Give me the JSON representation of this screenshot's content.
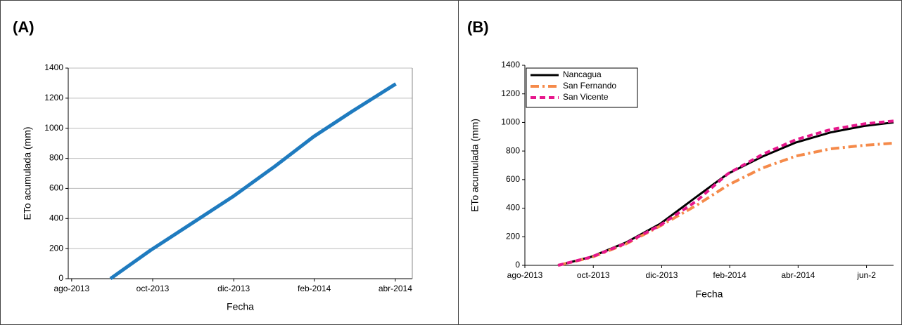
{
  "chart_data": [
    {
      "type": "line",
      "title": "(A)",
      "x_label": "Fecha",
      "y_label": "ETo acumulada (mm)",
      "x": [
        2013.663,
        2013.746,
        2013.827,
        2013.915,
        2014.001,
        2014.082,
        2014.16,
        2014.251
      ],
      "values": [
        0,
        190,
        360,
        545,
        745,
        945,
        1110,
        1295
      ],
      "color": "#1f7bbf",
      "grid": true,
      "xlim": [
        2013.576,
        2014.285
      ],
      "xticks": [
        {
          "value": 2013.583,
          "label": "ago-2013"
        },
        {
          "value": 2013.75,
          "label": "oct-2013"
        },
        {
          "value": 2013.917,
          "label": "dic-2013"
        },
        {
          "value": 2014.083,
          "label": "feb-2014"
        },
        {
          "value": 2014.25,
          "label": "abr-2014"
        }
      ],
      "ylim": [
        0,
        1400
      ],
      "yticks": [
        0,
        200,
        400,
        600,
        800,
        1000,
        1200,
        1400
      ]
    },
    {
      "type": "line",
      "title": "(B)",
      "x_label": "Fecha",
      "y_label": "ETo acumulada (mm)",
      "x": [
        2013.664,
        2013.745,
        2013.83,
        2013.913,
        2014.002,
        2014.078,
        2014.162,
        2014.245,
        2014.329,
        2014.411,
        2014.483
      ],
      "series": [
        {
          "name": "Nancagua",
          "color": "#000000",
          "line_style": "solid",
          "values": [
            0,
            60,
            160,
            290,
            480,
            640,
            760,
            860,
            930,
            975,
            1000
          ]
        },
        {
          "name": "San Fernando",
          "color": "#f58a4a",
          "line_style": "dashdot",
          "values": [
            0,
            55,
            150,
            275,
            420,
            560,
            680,
            765,
            815,
            840,
            855
          ]
        },
        {
          "name": "San Vicente",
          "color": "#e6178c",
          "line_style": "dashed",
          "values": [
            0,
            58,
            155,
            280,
            450,
            640,
            775,
            880,
            950,
            990,
            1010
          ]
        }
      ],
      "grid": false,
      "legend": "top-left",
      "xlim": [
        2013.583,
        2014.483
      ],
      "xticks": [
        {
          "value": 2013.583,
          "label": "ago-2013"
        },
        {
          "value": 2013.75,
          "label": "oct-2013"
        },
        {
          "value": 2013.917,
          "label": "dic-2013"
        },
        {
          "value": 2014.083,
          "label": "feb-2014"
        },
        {
          "value": 2014.25,
          "label": "abr-2014"
        },
        {
          "value": 2014.417,
          "label": "jun-2"
        }
      ],
      "ylim": [
        0,
        1400
      ],
      "yticks": [
        0,
        200,
        400,
        600,
        800,
        1000,
        1200,
        1400
      ]
    }
  ]
}
